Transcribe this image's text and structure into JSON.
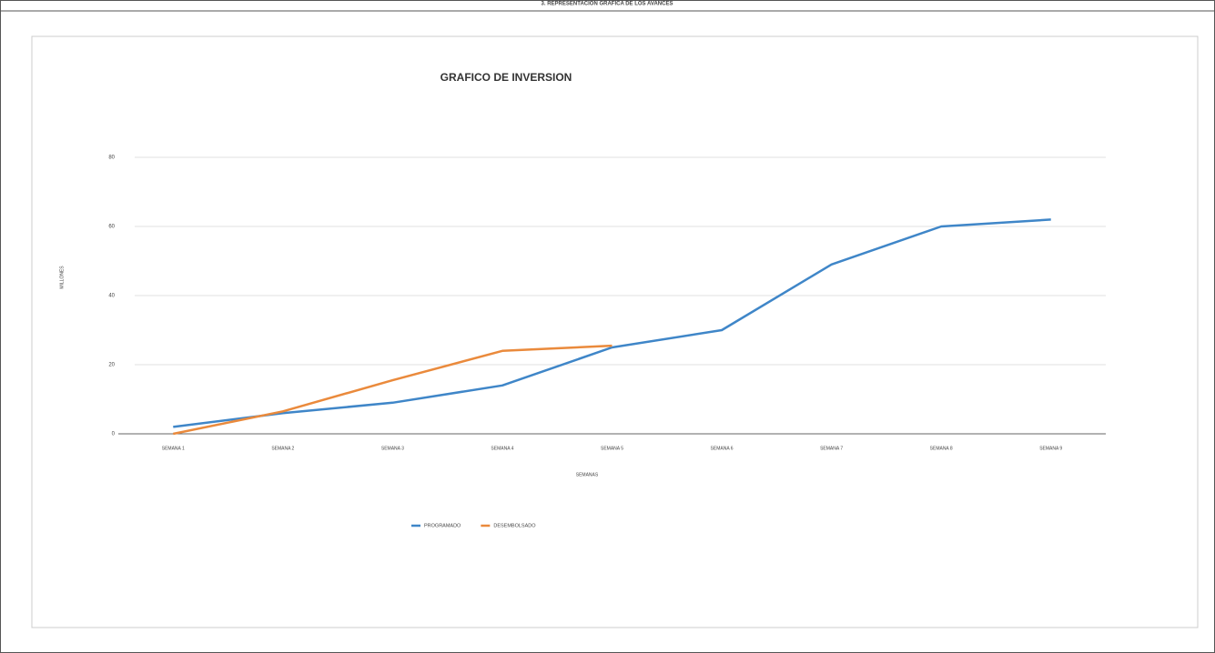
{
  "header": {
    "title": "3. REPRESENTACION GRAFICA DE LOS AVANCES"
  },
  "chart_data": {
    "type": "line",
    "title": "GRAFICO DE INVERSION",
    "y_label": "MILLONES",
    "x_label": "SEMANAS",
    "categories": [
      "SEMANA 1",
      "SEMANA 2",
      "SEMANA 3",
      "SEMANA 4",
      "SEMANA 5",
      "SEMANA 6",
      "SEMANA 7",
      "SEMANA 8",
      "SEMANA 9"
    ],
    "series": [
      {
        "name": "PROGRAMADO",
        "color": "#3f86c8",
        "values": [
          2,
          6,
          9,
          14,
          25,
          30,
          49,
          60,
          62
        ]
      },
      {
        "name": "DESEMBOLSADO",
        "color": "#ea8a3c",
        "values": [
          0,
          6.5,
          15.5,
          24,
          25.5,
          null,
          null,
          null,
          null
        ]
      }
    ],
    "ylim": [
      0,
      80
    ],
    "yticks": [
      0,
      20,
      40,
      60,
      80
    ],
    "grid": true,
    "legend": "bottom"
  }
}
